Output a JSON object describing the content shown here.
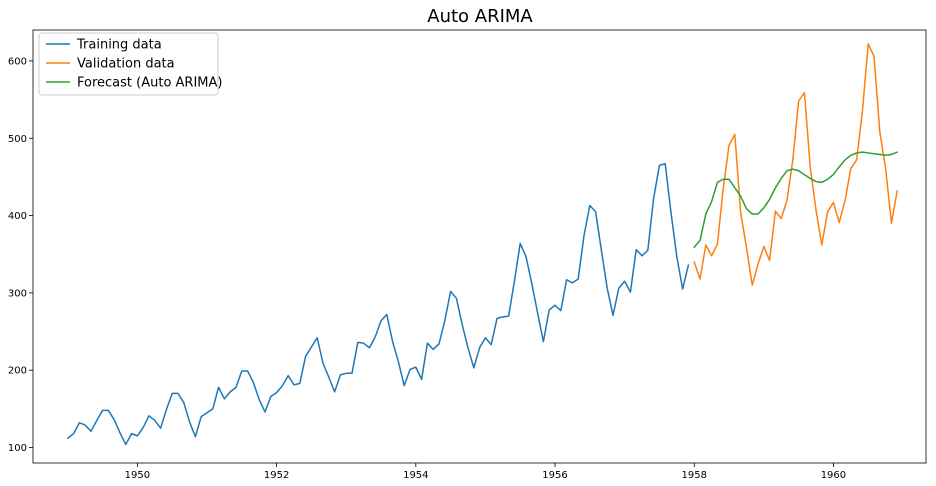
{
  "chart_data": {
    "type": "line",
    "title": "Auto ARIMA",
    "xlabel": "",
    "ylabel": "",
    "xlim": [
      1948.5,
      1961.33
    ],
    "ylim": [
      80,
      640
    ],
    "x_ticks": [
      1950,
      1952,
      1954,
      1956,
      1958,
      1960
    ],
    "x_tick_labels": [
      "1950",
      "1952",
      "1954",
      "1956",
      "1958",
      "1960"
    ],
    "y_ticks": [
      100,
      200,
      300,
      400,
      500,
      600
    ],
    "y_tick_labels": [
      "100",
      "200",
      "300",
      "400",
      "500",
      "600"
    ],
    "grid": false,
    "legend_position": "upper-left",
    "series": [
      {
        "name": "Training data",
        "color": "#1f77b4",
        "x_start": 1949.0,
        "x_step": 0.08333,
        "values": [
          112,
          118,
          132,
          129,
          121,
          135,
          148,
          148,
          136,
          119,
          104,
          118,
          115,
          126,
          141,
          135,
          125,
          149,
          170,
          170,
          158,
          133,
          114,
          140,
          145,
          150,
          178,
          163,
          172,
          178,
          199,
          199,
          184,
          162,
          146,
          166,
          171,
          180,
          193,
          181,
          183,
          218,
          230,
          242,
          209,
          191,
          172,
          194,
          196,
          196,
          236,
          235,
          229,
          243,
          264,
          272,
          237,
          211,
          180,
          201,
          204,
          188,
          235,
          227,
          234,
          264,
          302,
          293,
          259,
          229,
          203,
          229,
          242,
          233,
          267,
          269,
          270,
          315,
          364,
          347,
          312,
          274,
          237,
          278,
          284,
          277,
          317,
          313,
          318,
          374,
          413,
          405,
          355,
          306,
          271,
          306,
          315,
          301,
          356,
          348,
          355,
          422,
          465,
          467,
          404,
          347,
          305,
          336
        ]
      },
      {
        "name": "Validation data",
        "color": "#ff7f0e",
        "x_start": 1958.0,
        "x_step": 0.08333,
        "values": [
          340,
          318,
          362,
          348,
          363,
          435,
          491,
          505,
          404,
          359,
          310,
          337,
          360,
          342,
          406,
          396,
          420,
          472,
          548,
          559,
          463,
          407,
          362,
          405,
          417,
          391,
          419,
          461,
          472,
          535,
          622,
          606,
          508,
          461,
          390,
          432
        ]
      },
      {
        "name": "Forecast (Auto ARIMA)",
        "color": "#2ca02c",
        "x_start": 1958.0,
        "x_step": 0.08333,
        "values": [
          359,
          368,
          402,
          418,
          443,
          447,
          447,
          436,
          425,
          409,
          402,
          402,
          410,
          421,
          436,
          448,
          458,
          460,
          458,
          453,
          448,
          444,
          443,
          447,
          453,
          463,
          472,
          478,
          481,
          482,
          481,
          480,
          479,
          478,
          479,
          482
        ]
      }
    ]
  }
}
